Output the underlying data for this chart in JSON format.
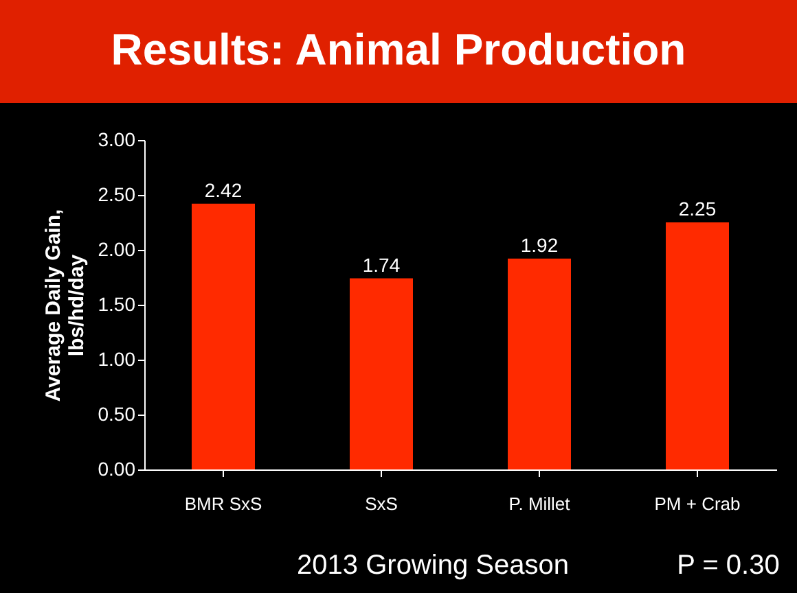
{
  "chart_data": {
    "type": "bar",
    "title": "Results: Animal Production",
    "ylabel": "Average Daily Gain, lbs/hd/day",
    "categories": [
      "BMR SxS",
      "SxS",
      "P. Millet",
      "PM + Crab"
    ],
    "values": [
      2.42,
      1.74,
      1.92,
      2.25
    ],
    "color": "#ff2a00",
    "ylim": [
      0,
      3
    ],
    "yticks": [
      {
        "value": 0,
        "label": "0.00"
      },
      {
        "value": 0.5,
        "label": "0.50"
      },
      {
        "value": 1,
        "label": "1.00"
      },
      {
        "value": 1.5,
        "label": "1.50"
      },
      {
        "value": 2,
        "label": "2.00"
      },
      {
        "value": 2.5,
        "label": "2.50"
      },
      {
        "value": 3,
        "label": "3.00"
      }
    ],
    "data_labels": true,
    "grid": false,
    "annotations": [
      "2013 Growing Season",
      "P = 0.30"
    ]
  }
}
